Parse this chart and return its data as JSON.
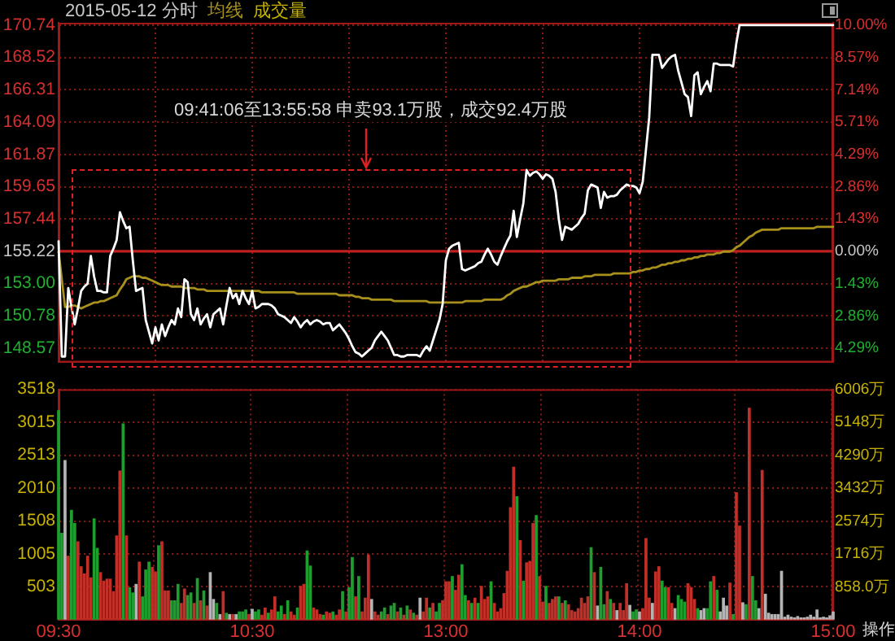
{
  "chart_data": [
    {
      "type": "line",
      "title": "2015-05-12 分时",
      "legend": "top left",
      "tick_labels": "y",
      "grid": true,
      "categories": [
        null,
        null,
        null,
        null,
        null,
        null,
        null,
        null,
        null,
        null,
        null,
        null,
        null,
        null,
        null,
        null,
        null,
        null,
        null,
        null,
        null,
        null,
        null,
        null,
        null,
        null,
        null,
        null,
        null,
        null,
        null,
        null,
        null,
        null,
        null,
        null,
        null,
        null,
        null,
        null,
        null,
        null,
        null,
        null,
        null,
        null,
        null,
        null,
        null,
        null,
        null,
        null,
        null,
        null,
        null,
        null,
        null,
        null,
        null,
        null,
        null,
        null,
        null,
        null,
        null,
        null,
        null,
        null,
        null,
        null,
        null,
        null,
        null,
        null,
        null,
        null,
        null,
        null,
        null,
        null,
        null,
        null,
        null,
        null,
        null,
        null,
        null,
        null,
        null,
        null,
        null,
        null,
        null,
        null,
        null,
        null,
        null,
        null,
        null,
        null,
        null,
        null,
        null,
        null,
        null,
        null,
        null,
        null,
        null,
        null,
        null,
        null,
        null,
        null,
        null,
        null,
        null,
        null,
        null,
        null,
        null,
        null,
        null,
        null,
        null,
        null,
        null,
        null,
        null,
        null,
        null,
        null,
        null,
        null,
        null,
        null,
        null,
        null,
        null,
        null,
        null,
        null,
        null,
        null,
        null,
        null,
        null,
        null,
        null,
        null,
        null,
        null,
        null,
        null,
        null,
        null,
        null,
        null,
        null,
        null,
        null,
        null,
        null,
        null,
        null,
        null,
        null,
        null,
        null,
        null,
        null,
        null,
        null,
        null,
        null,
        null,
        null,
        null,
        null,
        null,
        null,
        null,
        null,
        null,
        null,
        null,
        null,
        null,
        null,
        null,
        null,
        null,
        null,
        null,
        null,
        null,
        null,
        null,
        null,
        null,
        null,
        null,
        null,
        null,
        null,
        null,
        null,
        null,
        null,
        null,
        null,
        null,
        null,
        null,
        null,
        null,
        null,
        null,
        null,
        null,
        null,
        null,
        null,
        null,
        null,
        null,
        null,
        null,
        null,
        null,
        null,
        null,
        null,
        null,
        null,
        null,
        null,
        null,
        null,
        null,
        null
      ],
      "ylim": [
        147.6,
        170.9
      ],
      "yticks": [
        148.57,
        150.78,
        {
          "value": 153,
          "label": "153.00"
        },
        155.22,
        157.44,
        159.65,
        161.87,
        164.09,
        166.31,
        168.52,
        170.74
      ],
      "y2lim": [
        -4.91,
        10.1
      ],
      "y2ticks": [
        {
          "value": -4.29,
          "label": "4.29%"
        },
        {
          "value": -2.86,
          "label": "2.86%"
        },
        {
          "value": -1.43,
          "label": "1.43%"
        },
        {
          "value": 0,
          "label": "0.00%"
        },
        {
          "value": 1.43,
          "label": "1.43%"
        },
        {
          "value": 2.86,
          "label": "2.86%"
        },
        {
          "value": 4.29,
          "label": "4.29%"
        },
        {
          "value": 5.71,
          "label": "5.71%"
        },
        {
          "value": 7.14,
          "label": "7.14%"
        },
        {
          "value": 8.57,
          "label": "8.57%"
        },
        {
          "value": 10.0,
          "label": "10.00%"
        }
      ],
      "ref_lines": [
        {
          "axis": "y",
          "value": 155.22,
          "color": "#c02020"
        }
      ],
      "annotations": [
        "09:41:06至13:55:58 申卖93.1万股，成交92.4万股"
      ],
      "series": [
        {
          "color": "#ffffff",
          "values": [
            155.9,
            148.0,
            148.0,
            152.7,
            151.4,
            150.2,
            151.3,
            152.5,
            152.8,
            153.0,
            154.9,
            153.5,
            152.5,
            152.5,
            152.4,
            152.4,
            154.9,
            155.4,
            156.0,
            157.9,
            157.3,
            156.8,
            156.9,
            154.6,
            152.5,
            152.6,
            152.7,
            150.5,
            149.7,
            148.9,
            150.0,
            149.1,
            150.2,
            149.4,
            150.0,
            150.5,
            150.2,
            151.3,
            150.7,
            153.3,
            153.1,
            150.9,
            150.5,
            151.3,
            150.2,
            150.6,
            150.9,
            150.0,
            150.9,
            151.1,
            151.3,
            150.2,
            151.5,
            152.7,
            152.0,
            152.3,
            151.6,
            152.5,
            152.0,
            151.6,
            152.5,
            151.3,
            151.4,
            151.6,
            151.6,
            151.6,
            151.5,
            151.3,
            150.9,
            150.8,
            150.7,
            150.5,
            150.3,
            150.7,
            150.4,
            150.0,
            150.3,
            150.5,
            150.2,
            150.4,
            150.5,
            150.4,
            150.2,
            150.3,
            150.3,
            149.8,
            150.0,
            150.2,
            149.9,
            149.6,
            149.2,
            148.7,
            148.3,
            148.2,
            148.0,
            148.2,
            148.4,
            148.6,
            149.1,
            149.4,
            149.7,
            149.4,
            149.1,
            148.6,
            148.1,
            148.1,
            148.0,
            148.0,
            148.1,
            148.1,
            148.1,
            148.1,
            148.0,
            148.4,
            148.7,
            148.4,
            149.1,
            149.8,
            150.5,
            151.6,
            154.6,
            155.4,
            155.6,
            155.7,
            155.8,
            154.0,
            153.9,
            154.0,
            154.1,
            154.2,
            154.4,
            154.5,
            155.0,
            155.4,
            155.0,
            154.5,
            154.3,
            154.9,
            155.4,
            155.9,
            156.3,
            158.0,
            156.2,
            157.4,
            158.5,
            160.8,
            160.4,
            160.6,
            160.7,
            160.5,
            160.2,
            160.5,
            160.4,
            160.2,
            159.3,
            157.4,
            156.0,
            156.9,
            156.8,
            156.7,
            156.9,
            157.1,
            157.5,
            157.8,
            159.4,
            159.8,
            159.7,
            159.6,
            158.2,
            159.3,
            158.9,
            159.0,
            159.0,
            159.1,
            159.4,
            159.6,
            159.8,
            159.7,
            159.7,
            159.6,
            159.2,
            160.0,
            162.2,
            164.4,
            168.7,
            168.7,
            168.7,
            167.8,
            168.1,
            168.4,
            168.6,
            168.7,
            167.6,
            166.8,
            166.0,
            165.8,
            164.5,
            167.3,
            167.5,
            166.0,
            166.5,
            166.9,
            166.2,
            168.1,
            168.1,
            168.0,
            168.0,
            168.0,
            168.0,
            167.9,
            169.5,
            170.74,
            170.74,
            170.74,
            170.74,
            170.74,
            170.74,
            170.74,
            170.74,
            170.74,
            170.74,
            170.74,
            170.74,
            170.74,
            170.74,
            170.74,
            170.74,
            170.74,
            170.74,
            170.74,
            170.74,
            170.74,
            170.74,
            170.74,
            170.74,
            170.74,
            170.74,
            170.74,
            170.74,
            170.74,
            170.74
          ]
        },
        {
          "name": "均线",
          "color": "#a8901c",
          "values": [
            155.2,
            153.3,
            151.4,
            151.4,
            151.5,
            151.5,
            151.4,
            151.3,
            151.4,
            151.5,
            151.6,
            151.7,
            151.7,
            151.8,
            151.8,
            151.9,
            152.0,
            152.1,
            152.2,
            152.6,
            152.9,
            153.3,
            153.4,
            153.5,
            153.5,
            153.5,
            153.4,
            153.4,
            153.3,
            153.2,
            153.1,
            153.0,
            152.9,
            152.9,
            152.9,
            152.8,
            152.8,
            152.8,
            152.8,
            152.7,
            152.7,
            152.7,
            152.7,
            152.6,
            152.6,
            152.6,
            152.5,
            152.5,
            152.5,
            152.5,
            152.5,
            152.5,
            152.5,
            152.5,
            152.5,
            152.5,
            152.5,
            152.5,
            152.5,
            152.5,
            152.5,
            152.5,
            152.5,
            152.4,
            152.4,
            152.4,
            152.4,
            152.4,
            152.4,
            152.4,
            152.4,
            152.4,
            152.4,
            152.4,
            152.3,
            152.3,
            152.3,
            152.3,
            152.3,
            152.3,
            152.3,
            152.3,
            152.3,
            152.3,
            152.3,
            152.3,
            152.3,
            152.2,
            152.2,
            152.2,
            152.2,
            152.2,
            152.1,
            152.1,
            152.0,
            152.0,
            152.0,
            151.9,
            151.9,
            151.9,
            151.9,
            151.9,
            151.9,
            151.9,
            151.8,
            151.8,
            151.8,
            151.8,
            151.8,
            151.8,
            151.8,
            151.8,
            151.8,
            151.8,
            151.8,
            151.7,
            151.7,
            151.7,
            151.7,
            151.7,
            151.7,
            151.7,
            151.7,
            151.7,
            151.7,
            151.7,
            151.8,
            151.8,
            151.8,
            151.8,
            151.8,
            151.8,
            151.9,
            151.9,
            151.9,
            151.9,
            151.9,
            151.9,
            152.0,
            152.2,
            152.3,
            152.5,
            152.6,
            152.7,
            152.8,
            152.8,
            152.9,
            153.0,
            153.1,
            153.1,
            153.2,
            153.2,
            153.2,
            153.2,
            153.2,
            153.3,
            153.3,
            153.3,
            153.3,
            153.4,
            153.4,
            153.4,
            153.4,
            153.5,
            153.5,
            153.5,
            153.6,
            153.6,
            153.6,
            153.6,
            153.6,
            153.6,
            153.7,
            153.7,
            153.7,
            153.7,
            153.7,
            153.7,
            153.8,
            153.8,
            153.9,
            153.9,
            154.0,
            154.0,
            154.1,
            154.1,
            154.2,
            154.3,
            154.3,
            154.4,
            154.4,
            154.5,
            154.5,
            154.6,
            154.6,
            154.7,
            154.7,
            154.8,
            154.8,
            154.9,
            154.9,
            155.0,
            155.0,
            155.0,
            155.1,
            155.1,
            155.2,
            155.2,
            155.2,
            155.3,
            155.5,
            155.6,
            155.8,
            156.0,
            156.2,
            156.3,
            156.5,
            156.6,
            156.7,
            156.7,
            156.7,
            156.7,
            156.7,
            156.7,
            156.8,
            156.8,
            156.8,
            156.8,
            156.8,
            156.8,
            156.8,
            156.8,
            156.8,
            156.8,
            156.8,
            156.9,
            156.9,
            156.9,
            156.9,
            156.9,
            156.9
          ]
        }
      ]
    },
    {
      "type": "bar",
      "legend": "top left",
      "grid": true,
      "categories": [
        "09:30",
        null,
        null,
        null,
        null,
        null,
        null,
        null,
        null,
        null,
        null,
        null,
        null,
        null,
        null,
        null,
        null,
        null,
        null,
        null,
        null,
        null,
        null,
        null,
        null,
        null,
        null,
        null,
        null,
        null,
        null,
        null,
        null,
        null,
        null,
        null,
        null,
        null,
        null,
        null,
        null,
        null,
        null,
        null,
        null,
        null,
        null,
        null,
        null,
        null,
        null,
        null,
        null,
        null,
        null,
        null,
        null,
        null,
        null,
        null,
        "10:30",
        null,
        null,
        null,
        null,
        null,
        null,
        null,
        null,
        null,
        null,
        null,
        null,
        null,
        null,
        null,
        null,
        null,
        null,
        null,
        null,
        null,
        null,
        null,
        null,
        null,
        null,
        null,
        null,
        null,
        null,
        null,
        null,
        null,
        null,
        null,
        null,
        null,
        null,
        null,
        null,
        null,
        null,
        null,
        null,
        null,
        null,
        null,
        null,
        null,
        null,
        null,
        null,
        null,
        null,
        null,
        null,
        null,
        null,
        null,
        "13:00",
        null,
        null,
        null,
        null,
        null,
        null,
        null,
        null,
        null,
        null,
        null,
        null,
        null,
        null,
        null,
        null,
        null,
        null,
        null,
        null,
        null,
        null,
        null,
        null,
        null,
        null,
        null,
        null,
        null,
        null,
        null,
        null,
        null,
        null,
        null,
        null,
        null,
        null,
        null,
        null,
        null,
        null,
        null,
        null,
        null,
        null,
        null,
        null,
        null,
        null,
        null,
        null,
        null,
        null,
        null,
        null,
        null,
        null,
        null,
        "14:00",
        null,
        null,
        null,
        null,
        null,
        null,
        null,
        null,
        null,
        null,
        null,
        null,
        null,
        null,
        null,
        null,
        null,
        null,
        null,
        null,
        null,
        null,
        null,
        null,
        null,
        null,
        null,
        null,
        null,
        null,
        null,
        null,
        null,
        null,
        null,
        null,
        null,
        null,
        null,
        null,
        null,
        null,
        null,
        null,
        null,
        null,
        null,
        null,
        null,
        null,
        null,
        null,
        null,
        null,
        null,
        null,
        null,
        null,
        null,
        "15:00"
      ],
      "ylim": [
        0,
        3518
      ],
      "yticks": [
        {
          "value": 0,
          "label": null
        },
        503,
        1005,
        1508,
        2010,
        2513,
        3015,
        3518
      ],
      "y2lim": [
        0,
        6006
      ],
      "y2ticks": [
        {
          "value": 858,
          "label": "858.0万"
        },
        {
          "value": 1716,
          "label": "1716万"
        },
        {
          "value": 2574,
          "label": "2574万"
        },
        {
          "value": 3432,
          "label": "3432万"
        },
        {
          "value": 4290,
          "label": "4290万"
        },
        {
          "value": 5148,
          "label": "5148万"
        },
        {
          "value": 6006,
          "label": "6006万"
        }
      ],
      "annotations": [
        "操作"
      ],
      "series": [
        {
          "name": "成交量",
          "values": [
            3190,
            1320,
            2430,
            970,
            1670,
            1470,
            1190,
            810,
            700,
            970,
            640,
            1540,
            1090,
            720,
            590,
            620,
            620,
            430,
            1280,
            2270,
            2990,
            1280,
            490,
            410,
            540,
            880,
            350,
            760,
            880,
            800,
            730,
            1130,
            1190,
            440,
            440,
            290,
            290,
            540,
            250,
            470,
            370,
            410,
            250,
            630,
            290,
            440,
            210,
            720,
            310,
            250,
            80,
            430,
            100,
            80,
            80,
            80,
            120,
            120,
            150,
            80,
            160,
            120,
            150,
            70,
            180,
            100,
            150,
            350,
            120,
            210,
            80,
            290,
            120,
            70,
            180,
            510,
            540,
            1050,
            820,
            180,
            150,
            80,
            70,
            120,
            100,
            120,
            70,
            150,
            430,
            120,
            490,
            950,
            350,
            660,
            120,
            330,
            990,
            310,
            120,
            70,
            120,
            180,
            80,
            210,
            250,
            120,
            180,
            70,
            210,
            150,
            100,
            70,
            330,
            120,
            330,
            180,
            250,
            120,
            250,
            290,
            580,
            580,
            660,
            450,
            680,
            840,
            370,
            290,
            250,
            330,
            250,
            510,
            310,
            350,
            580,
            250,
            120,
            170,
            400,
            740,
            1710,
            2330,
            1880,
            1210,
            590,
            870,
            890,
            1470,
            1590,
            660,
            270,
            510,
            250,
            310,
            350,
            350,
            250,
            290,
            230,
            140,
            120,
            170,
            330,
            250,
            350,
            1100,
            720,
            210,
            800,
            230,
            430,
            310,
            250,
            140,
            250,
            140,
            550,
            220,
            120,
            150,
            120,
            170,
            1240,
            330,
            250,
            730,
            810,
            590,
            490,
            490,
            250,
            170,
            370,
            310,
            270,
            550,
            490,
            310,
            170,
            140,
            170,
            170,
            580,
            660,
            450,
            120,
            330,
            210,
            560,
            80,
            1940,
            1430,
            260,
            230,
            3230,
            660,
            290,
            170,
            2280,
            390,
            100,
            80,
            80,
            80,
            740,
            40,
            70,
            40,
            30,
            50,
            30,
            30,
            40,
            70,
            40,
            150,
            30,
            40,
            30,
            60,
            120
          ],
          "colors": [
            "#1e9e2e",
            "#1e9e2e",
            "#b4b4b4",
            "#c03028",
            "#1e9e2e",
            "#1e9e2e",
            "#c03028",
            "#c03028",
            "#c03028",
            "#c03028",
            "#c03028",
            "#1e9e2e",
            "#1e9e2e",
            "#c03028",
            "#c03028",
            "#c03028",
            "#c03028",
            "#c03028",
            "#c03028",
            "#c03028",
            "#1e9e2e",
            "#c03028",
            "#1e9e2e",
            "#1e9e2e",
            "#b4b4b4",
            "#c03028",
            "#1e9e2e",
            "#1e9e2e",
            "#1e9e2e",
            "#c03028",
            "#c03028",
            "#1e9e2e",
            "#c03028",
            "#c03028",
            "#c03028",
            "#1e9e2e",
            "#1e9e2e",
            "#1e9e2e",
            "#c03028",
            "#c03028",
            "#1e9e2e",
            "#1e9e2e",
            "#c03028",
            "#1e9e2e",
            "#c03028",
            "#1e9e2e",
            "#c03028",
            "#b4b4b4",
            "#b4b4b4",
            "#1e9e2e",
            "#b4b4b4",
            "#c03028",
            "#1e9e2e",
            "#b4b4b4",
            "#c03028",
            "#b4b4b4",
            "#1e9e2e",
            "#1e9e2e",
            "#1e9e2e",
            "#c03028",
            "#b4b4b4",
            "#1e9e2e",
            "#1e9e2e",
            "#c03028",
            "#c03028",
            "#1e9e2e",
            "#c03028",
            "#c03028",
            "#1e9e2e",
            "#1e9e2e",
            "#c03028",
            "#1e9e2e",
            "#c03028",
            "#c03028",
            "#1e9e2e",
            "#c03028",
            "#c03028",
            "#1e9e2e",
            "#1e9e2e",
            "#c03028",
            "#c03028",
            "#c03028",
            "#1e9e2e",
            "#c03028",
            "#c03028",
            "#1e9e2e",
            "#c03028",
            "#c03028",
            "#1e9e2e",
            "#c03028",
            "#1e9e2e",
            "#1e9e2e",
            "#c03028",
            "#1e9e2e",
            "#c03028",
            "#c03028",
            "#c03028",
            "#b4b4b4",
            "#c03028",
            "#c03028",
            "#1e9e2e",
            "#1e9e2e",
            "#c03028",
            "#1e9e2e",
            "#1e9e2e",
            "#c03028",
            "#1e9e2e",
            "#c03028",
            "#1e9e2e",
            "#c03028",
            "#1e9e2e",
            "#c03028",
            "#b4b4b4",
            "#c03028",
            "#c03028",
            "#1e9e2e",
            "#c03028",
            "#1e9e2e",
            "#1e9e2e",
            "#c03028",
            "#c03028",
            "#c03028",
            "#1e9e2e",
            "#c03028",
            "#c03028",
            "#1e9e2e",
            "#1e9e2e",
            "#c03028",
            "#1e9e2e",
            "#c03028",
            "#1e9e2e",
            "#c03028",
            "#c03028",
            "#c03028",
            "#1e9e2e",
            "#c03028",
            "#c03028",
            "#c03028",
            "#c03028",
            "#c03028",
            "#c03028",
            "#c03028",
            "#1e9e2e",
            "#c03028",
            "#1e9e2e",
            "#c03028",
            "#c03028",
            "#c03028",
            "#1e9e2e",
            "#c03028",
            "#c03028",
            "#1e9e2e",
            "#c03028",
            "#c03028",
            "#c03028",
            "#1e9e2e",
            "#c03028",
            "#1e9e2e",
            "#c03028",
            "#c03028",
            "#c03028",
            "#c03028",
            "#c03028",
            "#c03028",
            "#c03028",
            "#1e9e2e",
            "#c03028",
            "#b4b4b4",
            "#1e9e2e",
            "#1e9e2e",
            "#c03028",
            "#1e9e2e",
            "#c03028",
            "#b4b4b4",
            "#c03028",
            "#c03028",
            "#c03028",
            "#b4b4b4",
            "#1e9e2e",
            "#1e9e2e",
            "#b4b4b4",
            "#c03028",
            "#c03028",
            "#c03028",
            "#b4b4b4",
            "#c03028",
            "#c03028",
            "#1e9e2e",
            "#1e9e2e",
            "#c03028",
            "#c03028",
            "#b4b4b4",
            "#1e9e2e",
            "#1e9e2e",
            "#1e9e2e",
            "#c03028",
            "#c03028",
            "#c03028",
            "#1e9e2e",
            "#b4b4b4",
            "#b4b4b4",
            "#1e9e2e",
            "#1e9e2e",
            "#c03028",
            "#1e9e2e",
            "#b4b4b4",
            "#b4b4b4",
            "#b4b4b4",
            "#c03028",
            "#1e9e2e",
            "#c03028",
            "#c03028",
            "#b4b4b4",
            "#1e9e2e",
            "#c03028",
            "#1e9e2e",
            "#1e9e2e",
            "#b4b4b4",
            "#c03028",
            "#b4b4b4",
            "#b4b4b4",
            "#b4b4b4",
            "#b4b4b4",
            "#b4b4b4",
            "#b4b4b4",
            "#b4b4b4",
            "#b4b4b4",
            "#b4b4b4",
            "#b4b4b4",
            "#b4b4b4",
            "#b4b4b4",
            "#b4b4b4",
            "#b4b4b4",
            "#b4b4b4",
            "#b4b4b4",
            "#b4b4b4",
            "#b4b4b4",
            "#b4b4b4",
            "#b4b4b4",
            "#b4b4b4",
            "#b4b4b4"
          ]
        }
      ]
    }
  ]
}
